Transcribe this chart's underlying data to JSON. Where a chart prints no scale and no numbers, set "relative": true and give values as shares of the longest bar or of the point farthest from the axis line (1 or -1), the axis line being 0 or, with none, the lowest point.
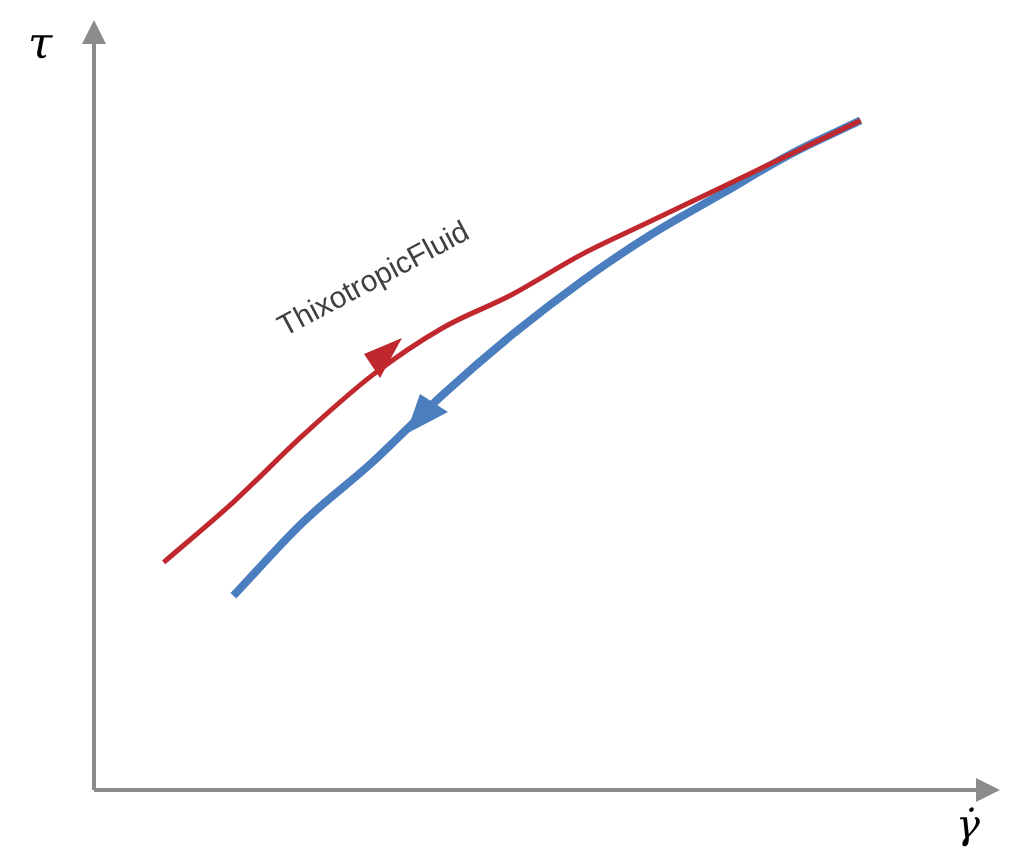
{
  "chart_data": {
    "type": "line",
    "relative": true,
    "xlabel": "γ̇",
    "ylabel": "τ",
    "annotations": [
      "ThixotropicFluid"
    ],
    "legend": false,
    "marker": "none",
    "line_style": "solid",
    "categories": [
      null,
      null,
      null,
      null,
      null,
      null,
      null,
      null,
      null,
      null,
      null,
      null,
      null,
      null
    ],
    "series": [
      {
        "color": "#c0282d",
        "values": [
          null,
          0.34,
          0.43,
          0.53,
          0.62,
          0.69,
          0.74,
          0.8,
          0.85,
          0.9,
          0.95,
          1,
          null,
          null
        ]
      },
      {
        "color": "#4a7ebf",
        "values": [
          null,
          null,
          0.29,
          0.4,
          0.49,
          0.59,
          0.68,
          0.76,
          0.83,
          0.89,
          0.95,
          1,
          null,
          null
        ]
      }
    ]
  }
}
